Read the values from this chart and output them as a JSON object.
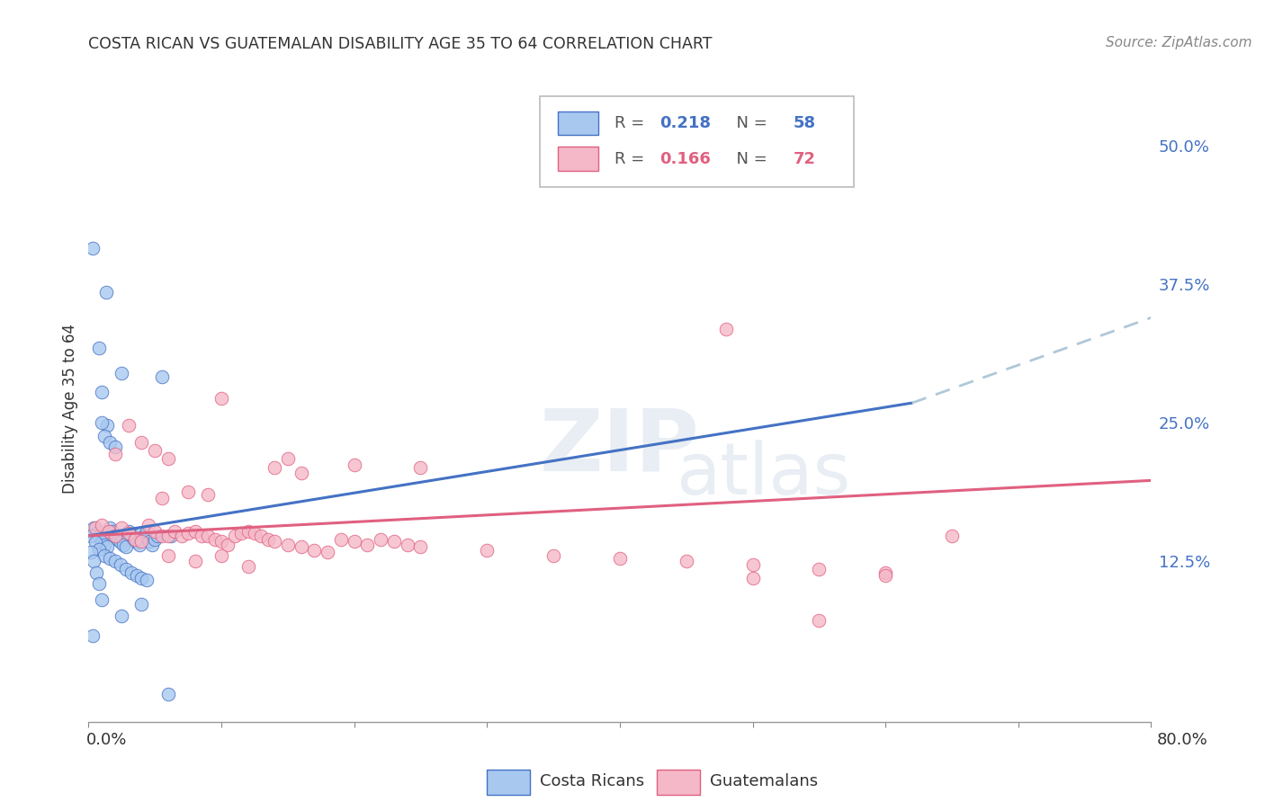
{
  "title": "COSTA RICAN VS GUATEMALAN DISABILITY AGE 35 TO 64 CORRELATION CHART",
  "source": "Source: ZipAtlas.com",
  "ylabel": "Disability Age 35 to 64",
  "ytick_labels": [
    "12.5%",
    "25.0%",
    "37.5%",
    "50.0%"
  ],
  "ytick_values": [
    0.125,
    0.25,
    0.375,
    0.5
  ],
  "xlim": [
    0.0,
    0.8
  ],
  "ylim": [
    -0.02,
    0.545
  ],
  "label_blue": "Costa Ricans",
  "label_pink": "Guatemalans",
  "color_blue": "#a8c8f0",
  "color_pink": "#f5b8c8",
  "line_blue": "#4472c4",
  "line_pink": "#e06080",
  "line_dashed_color": "#b0c8d8",
  "blue_line_x": [
    0.0,
    0.62
  ],
  "blue_line_y": [
    0.148,
    0.268
  ],
  "dashed_line_x": [
    0.62,
    0.8
  ],
  "dashed_line_y": [
    0.268,
    0.345
  ],
  "pink_line_x": [
    0.0,
    0.8
  ],
  "pink_line_y": [
    0.148,
    0.198
  ],
  "blue_points": [
    [
      0.004,
      0.155
    ],
    [
      0.006,
      0.15
    ],
    [
      0.008,
      0.148
    ],
    [
      0.01,
      0.143
    ],
    [
      0.012,
      0.14
    ],
    [
      0.014,
      0.138
    ],
    [
      0.016,
      0.155
    ],
    [
      0.018,
      0.152
    ],
    [
      0.02,
      0.148
    ],
    [
      0.022,
      0.145
    ],
    [
      0.024,
      0.142
    ],
    [
      0.026,
      0.14
    ],
    [
      0.028,
      0.138
    ],
    [
      0.03,
      0.152
    ],
    [
      0.032,
      0.148
    ],
    [
      0.034,
      0.145
    ],
    [
      0.036,
      0.142
    ],
    [
      0.038,
      0.14
    ],
    [
      0.04,
      0.15
    ],
    [
      0.042,
      0.148
    ],
    [
      0.044,
      0.152
    ],
    [
      0.046,
      0.143
    ],
    [
      0.048,
      0.14
    ],
    [
      0.05,
      0.145
    ],
    [
      0.002,
      0.148
    ],
    [
      0.005,
      0.142
    ],
    [
      0.008,
      0.136
    ],
    [
      0.012,
      0.13
    ],
    [
      0.016,
      0.128
    ],
    [
      0.02,
      0.125
    ],
    [
      0.024,
      0.122
    ],
    [
      0.028,
      0.118
    ],
    [
      0.032,
      0.115
    ],
    [
      0.036,
      0.112
    ],
    [
      0.04,
      0.11
    ],
    [
      0.044,
      0.108
    ],
    [
      0.003,
      0.408
    ],
    [
      0.013,
      0.368
    ],
    [
      0.008,
      0.318
    ],
    [
      0.01,
      0.278
    ],
    [
      0.014,
      0.248
    ],
    [
      0.012,
      0.238
    ],
    [
      0.016,
      0.232
    ],
    [
      0.02,
      0.228
    ],
    [
      0.025,
      0.295
    ],
    [
      0.01,
      0.25
    ],
    [
      0.055,
      0.292
    ],
    [
      0.002,
      0.133
    ],
    [
      0.004,
      0.125
    ],
    [
      0.006,
      0.115
    ],
    [
      0.008,
      0.105
    ],
    [
      0.01,
      0.09
    ],
    [
      0.025,
      0.076
    ],
    [
      0.04,
      0.086
    ],
    [
      0.003,
      0.058
    ],
    [
      0.06,
      0.005
    ],
    [
      0.062,
      0.148
    ],
    [
      0.052,
      0.148
    ]
  ],
  "pink_points": [
    [
      0.005,
      0.155
    ],
    [
      0.01,
      0.158
    ],
    [
      0.015,
      0.152
    ],
    [
      0.02,
      0.148
    ],
    [
      0.025,
      0.155
    ],
    [
      0.03,
      0.15
    ],
    [
      0.035,
      0.145
    ],
    [
      0.04,
      0.143
    ],
    [
      0.045,
      0.158
    ],
    [
      0.05,
      0.152
    ],
    [
      0.055,
      0.148
    ],
    [
      0.06,
      0.148
    ],
    [
      0.065,
      0.152
    ],
    [
      0.07,
      0.148
    ],
    [
      0.075,
      0.15
    ],
    [
      0.08,
      0.152
    ],
    [
      0.085,
      0.148
    ],
    [
      0.09,
      0.148
    ],
    [
      0.095,
      0.145
    ],
    [
      0.1,
      0.143
    ],
    [
      0.105,
      0.14
    ],
    [
      0.11,
      0.148
    ],
    [
      0.115,
      0.15
    ],
    [
      0.12,
      0.152
    ],
    [
      0.125,
      0.15
    ],
    [
      0.13,
      0.148
    ],
    [
      0.135,
      0.145
    ],
    [
      0.14,
      0.143
    ],
    [
      0.15,
      0.14
    ],
    [
      0.16,
      0.138
    ],
    [
      0.17,
      0.135
    ],
    [
      0.18,
      0.133
    ],
    [
      0.19,
      0.145
    ],
    [
      0.2,
      0.143
    ],
    [
      0.21,
      0.14
    ],
    [
      0.22,
      0.145
    ],
    [
      0.23,
      0.143
    ],
    [
      0.24,
      0.14
    ],
    [
      0.25,
      0.138
    ],
    [
      0.3,
      0.135
    ],
    [
      0.35,
      0.13
    ],
    [
      0.4,
      0.128
    ],
    [
      0.45,
      0.125
    ],
    [
      0.5,
      0.122
    ],
    [
      0.55,
      0.118
    ],
    [
      0.6,
      0.115
    ],
    [
      0.65,
      0.148
    ],
    [
      0.02,
      0.222
    ],
    [
      0.03,
      0.248
    ],
    [
      0.04,
      0.232
    ],
    [
      0.05,
      0.225
    ],
    [
      0.06,
      0.218
    ],
    [
      0.1,
      0.272
    ],
    [
      0.15,
      0.218
    ],
    [
      0.2,
      0.212
    ],
    [
      0.25,
      0.21
    ],
    [
      0.14,
      0.21
    ],
    [
      0.16,
      0.205
    ],
    [
      0.055,
      0.182
    ],
    [
      0.075,
      0.188
    ],
    [
      0.09,
      0.185
    ],
    [
      0.48,
      0.335
    ],
    [
      0.06,
      0.13
    ],
    [
      0.08,
      0.125
    ],
    [
      0.1,
      0.13
    ],
    [
      0.12,
      0.12
    ],
    [
      0.5,
      0.11
    ],
    [
      0.55,
      0.072
    ],
    [
      0.6,
      0.112
    ]
  ]
}
